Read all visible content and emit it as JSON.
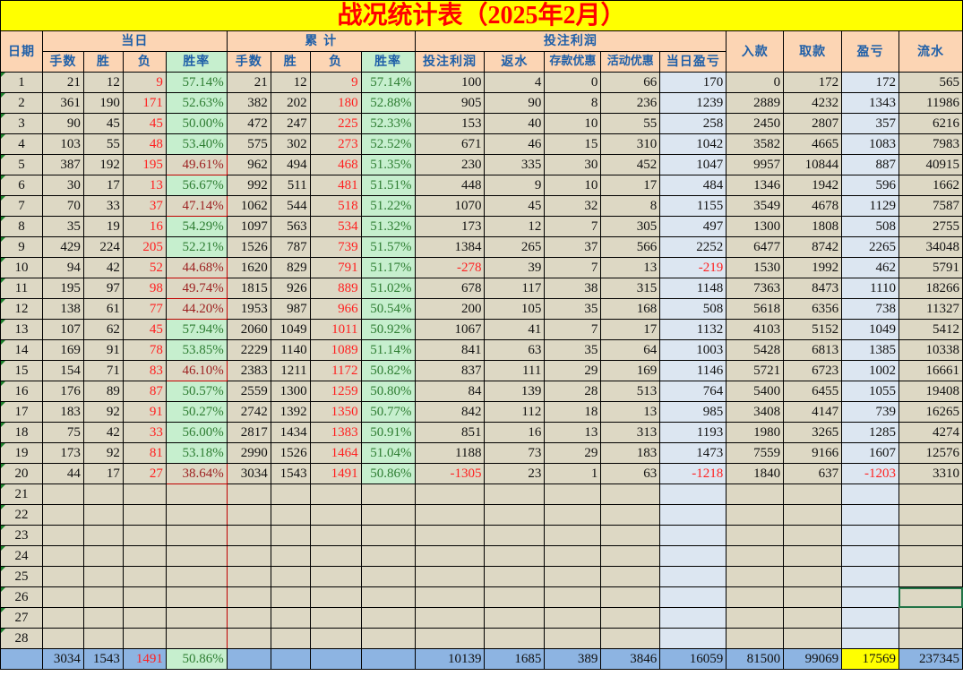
{
  "title": "战况统计表（2025年2月）",
  "headers": {
    "date": "日期",
    "today": "当日",
    "cumulative": "累  计",
    "bet_profit_group": "投注利润",
    "deposit": "入款",
    "withdraw": "取款",
    "profit_loss": "盈亏",
    "turnover": "流水",
    "sub": [
      "手数",
      "胜",
      "负",
      "胜率",
      "手数",
      "胜",
      "负",
      "胜率",
      "投注利润",
      "返水",
      "存款优惠",
      "活动优惠",
      "当日盈亏"
    ]
  },
  "colors": {
    "title_bg": "#FFFF00",
    "title_text": "#FF0000",
    "header_bg": "#FCD5B4",
    "header_text": "#1F5FA8",
    "cell_bg": "#DDD8C4",
    "rate_bg": "#C6EFCE",
    "daily_pl_bg": "#DCE6F1",
    "total_bg": "#8DB4E2",
    "negative": "#FF2020"
  },
  "rows": [
    [
      "1",
      "21",
      "12",
      "9",
      "57.14%",
      "21",
      "12",
      "9",
      "57.14%",
      "100",
      "4",
      "0",
      "66",
      "170",
      "0",
      "172",
      "172",
      "565"
    ],
    [
      "2",
      "361",
      "190",
      "171",
      "52.63%",
      "382",
      "202",
      "180",
      "52.88%",
      "905",
      "90",
      "8",
      "236",
      "1239",
      "2889",
      "4232",
      "1343",
      "11986"
    ],
    [
      "3",
      "90",
      "45",
      "45",
      "50.00%",
      "472",
      "247",
      "225",
      "52.33%",
      "153",
      "40",
      "10",
      "55",
      "258",
      "2450",
      "2807",
      "357",
      "6216"
    ],
    [
      "4",
      "103",
      "55",
      "48",
      "53.40%",
      "575",
      "302",
      "273",
      "52.52%",
      "671",
      "46",
      "15",
      "310",
      "1042",
      "3582",
      "4665",
      "1083",
      "7983"
    ],
    [
      "5",
      "387",
      "192",
      "195",
      "49.61%",
      "962",
      "494",
      "468",
      "51.35%",
      "230",
      "335",
      "30",
      "452",
      "1047",
      "9957",
      "10844",
      "887",
      "40915"
    ],
    [
      "6",
      "30",
      "17",
      "13",
      "56.67%",
      "992",
      "511",
      "481",
      "51.51%",
      "448",
      "9",
      "10",
      "17",
      "484",
      "1346",
      "1942",
      "596",
      "1662"
    ],
    [
      "7",
      "70",
      "33",
      "37",
      "47.14%",
      "1062",
      "544",
      "518",
      "51.22%",
      "1070",
      "45",
      "32",
      "8",
      "1155",
      "3549",
      "4678",
      "1129",
      "7587"
    ],
    [
      "8",
      "35",
      "19",
      "16",
      "54.29%",
      "1097",
      "563",
      "534",
      "51.32%",
      "173",
      "12",
      "7",
      "305",
      "497",
      "1300",
      "1808",
      "508",
      "2755"
    ],
    [
      "9",
      "429",
      "224",
      "205",
      "52.21%",
      "1526",
      "787",
      "739",
      "51.57%",
      "1384",
      "265",
      "37",
      "566",
      "2252",
      "6477",
      "8742",
      "2265",
      "34048"
    ],
    [
      "10",
      "94",
      "42",
      "52",
      "44.68%",
      "1620",
      "829",
      "791",
      "51.17%",
      "-278",
      "39",
      "7",
      "13",
      "-219",
      "1530",
      "1992",
      "462",
      "5791"
    ],
    [
      "11",
      "195",
      "97",
      "98",
      "49.74%",
      "1815",
      "926",
      "889",
      "51.02%",
      "678",
      "117",
      "38",
      "315",
      "1148",
      "7363",
      "8473",
      "1110",
      "18266"
    ],
    [
      "12",
      "138",
      "61",
      "77",
      "44.20%",
      "1953",
      "987",
      "966",
      "50.54%",
      "200",
      "105",
      "35",
      "168",
      "508",
      "5618",
      "6356",
      "738",
      "11327"
    ],
    [
      "13",
      "107",
      "62",
      "45",
      "57.94%",
      "2060",
      "1049",
      "1011",
      "50.92%",
      "1067",
      "41",
      "7",
      "17",
      "1132",
      "4103",
      "5152",
      "1049",
      "5412"
    ],
    [
      "14",
      "169",
      "91",
      "78",
      "53.85%",
      "2229",
      "1140",
      "1089",
      "51.14%",
      "841",
      "63",
      "35",
      "64",
      "1003",
      "5428",
      "6813",
      "1385",
      "10338"
    ],
    [
      "15",
      "154",
      "71",
      "83",
      "46.10%",
      "2383",
      "1211",
      "1172",
      "50.82%",
      "837",
      "111",
      "29",
      "169",
      "1146",
      "5721",
      "6723",
      "1002",
      "16661"
    ],
    [
      "16",
      "176",
      "89",
      "87",
      "50.57%",
      "2559",
      "1300",
      "1259",
      "50.80%",
      "84",
      "139",
      "28",
      "513",
      "764",
      "5400",
      "6455",
      "1055",
      "19408"
    ],
    [
      "17",
      "183",
      "92",
      "91",
      "50.27%",
      "2742",
      "1392",
      "1350",
      "50.77%",
      "842",
      "112",
      "18",
      "13",
      "985",
      "3408",
      "4147",
      "739",
      "16265"
    ],
    [
      "18",
      "75",
      "42",
      "33",
      "56.00%",
      "2817",
      "1434",
      "1383",
      "50.91%",
      "851",
      "16",
      "13",
      "313",
      "1193",
      "1980",
      "3265",
      "1285",
      "4274"
    ],
    [
      "19",
      "173",
      "92",
      "81",
      "53.18%",
      "2990",
      "1526",
      "1464",
      "51.04%",
      "1188",
      "73",
      "29",
      "183",
      "1473",
      "7559",
      "9166",
      "1607",
      "12576"
    ],
    [
      "20",
      "44",
      "17",
      "27",
      "38.64%",
      "3034",
      "1543",
      "1491",
      "50.86%",
      "-1305",
      "23",
      "1",
      "63",
      "-1218",
      "1840",
      "637",
      "-1203",
      "3310"
    ]
  ],
  "empty_days": [
    "21",
    "22",
    "23",
    "24",
    "25",
    "26",
    "27",
    "28"
  ],
  "total": [
    "",
    "3034",
    "1543",
    "1491",
    "50.86%",
    "",
    "",
    "",
    "",
    "10139",
    "1685",
    "389",
    "3846",
    "16059",
    "81500",
    "99069",
    "17569",
    "237345"
  ]
}
